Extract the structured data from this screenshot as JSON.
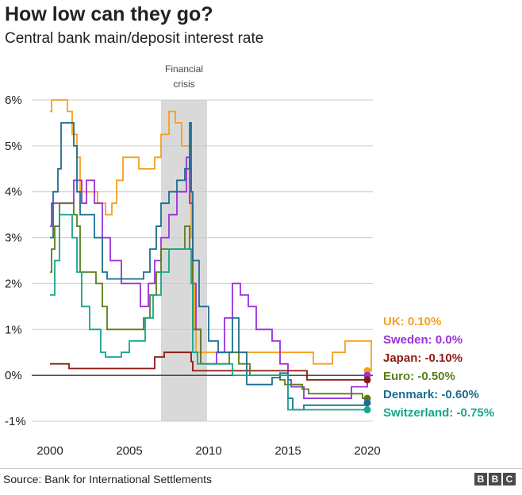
{
  "header": {
    "title": "How low can they go?",
    "subtitle": "Central bank main/deposit interest rate"
  },
  "footer": {
    "source": "Source: Bank for International Settlements",
    "logo_letters": [
      "B",
      "B",
      "C"
    ]
  },
  "annotation": {
    "line1": "Financial",
    "line2": "crisis",
    "x_start": 2007.0,
    "x_end": 2009.9
  },
  "chart_data": {
    "type": "line",
    "title": "How low can they go?",
    "subtitle": "Central bank main/deposit interest rate",
    "xlabel": "",
    "ylabel": "",
    "xlim": [
      2000,
      2020.5
    ],
    "ylim": [
      -1,
      6
    ],
    "x_ticks": [
      2000,
      2005,
      2010,
      2015,
      2020
    ],
    "x_tick_labels": [
      "2000",
      "2005",
      "2010",
      "2015",
      "2020"
    ],
    "y_ticks": [
      -1,
      0,
      1,
      2,
      3,
      4,
      5,
      6
    ],
    "y_tick_labels": [
      "-1%",
      "0%",
      "1%",
      "2%",
      "3%",
      "4%",
      "5%",
      "6%"
    ],
    "grid": true,
    "series": [
      {
        "name": "UK",
        "label": "UK: 0.10%",
        "color": "#f5a01d",
        "points": [
          [
            2000,
            5.75
          ],
          [
            2000.1,
            6.0
          ],
          [
            2001.0,
            6.0
          ],
          [
            2001.1,
            5.75
          ],
          [
            2001.4,
            5.25
          ],
          [
            2001.7,
            4.75
          ],
          [
            2001.9,
            4.0
          ],
          [
            2003.0,
            3.75
          ],
          [
            2003.5,
            3.5
          ],
          [
            2003.9,
            3.75
          ],
          [
            2004.2,
            4.25
          ],
          [
            2004.6,
            4.75
          ],
          [
            2005.6,
            4.5
          ],
          [
            2006.6,
            4.75
          ],
          [
            2007.0,
            5.25
          ],
          [
            2007.5,
            5.75
          ],
          [
            2007.9,
            5.5
          ],
          [
            2008.3,
            5.0
          ],
          [
            2008.8,
            4.5
          ],
          [
            2008.9,
            3.0
          ],
          [
            2009.0,
            2.0
          ],
          [
            2009.1,
            1.0
          ],
          [
            2009.2,
            0.5
          ],
          [
            2016.6,
            0.25
          ],
          [
            2017.8,
            0.5
          ],
          [
            2018.6,
            0.75
          ],
          [
            2020.2,
            0.75
          ],
          [
            2020.25,
            0.1
          ]
        ],
        "end_value": 0.1
      },
      {
        "name": "Sweden",
        "label": "Sweden: 0.0%",
        "color": "#9b30d9",
        "points": [
          [
            2000,
            3.25
          ],
          [
            2000.1,
            3.75
          ],
          [
            2001.5,
            4.25
          ],
          [
            2002.0,
            3.75
          ],
          [
            2002.3,
            4.25
          ],
          [
            2002.8,
            3.75
          ],
          [
            2003.3,
            3.0
          ],
          [
            2003.8,
            2.5
          ],
          [
            2004.5,
            2.0
          ],
          [
            2005.7,
            1.5
          ],
          [
            2006.2,
            2.0
          ],
          [
            2006.6,
            2.5
          ],
          [
            2007.0,
            3.0
          ],
          [
            2007.5,
            3.5
          ],
          [
            2008.0,
            4.0
          ],
          [
            2008.6,
            4.75
          ],
          [
            2008.8,
            3.75
          ],
          [
            2009.0,
            2.0
          ],
          [
            2009.2,
            1.0
          ],
          [
            2009.5,
            0.25
          ],
          [
            2010.5,
            0.5
          ],
          [
            2011.0,
            1.25
          ],
          [
            2011.5,
            2.0
          ],
          [
            2012.0,
            1.75
          ],
          [
            2012.5,
            1.5
          ],
          [
            2013.0,
            1.0
          ],
          [
            2014.0,
            0.75
          ],
          [
            2014.5,
            0.25
          ],
          [
            2015.0,
            -0.1
          ],
          [
            2015.2,
            -0.25
          ],
          [
            2016.0,
            -0.5
          ],
          [
            2019.0,
            -0.25
          ],
          [
            2020.0,
            0.0
          ]
        ],
        "end_value": 0.0
      },
      {
        "name": "Japan",
        "label": "Japan: -0.10%",
        "color": "#8b1a10",
        "points": [
          [
            2000,
            0.25
          ],
          [
            2000.6,
            0.25
          ],
          [
            2001.2,
            0.15
          ],
          [
            2006.5,
            0.15
          ],
          [
            2006.6,
            0.4
          ],
          [
            2007.2,
            0.5
          ],
          [
            2008.8,
            0.5
          ],
          [
            2008.9,
            0.3
          ],
          [
            2009.0,
            0.1
          ],
          [
            2016.1,
            0.1
          ],
          [
            2016.2,
            -0.1
          ],
          [
            2020.0,
            -0.1
          ]
        ],
        "end_value": -0.1
      },
      {
        "name": "Euro",
        "label": "Euro: -0.50%",
        "color": "#5a7e1a",
        "points": [
          [
            2000,
            2.25
          ],
          [
            2000.1,
            2.75
          ],
          [
            2000.3,
            3.25
          ],
          [
            2000.6,
            3.75
          ],
          [
            2001.5,
            3.5
          ],
          [
            2001.7,
            3.25
          ],
          [
            2001.9,
            2.25
          ],
          [
            2002.9,
            2.0
          ],
          [
            2003.3,
            1.5
          ],
          [
            2003.6,
            1.0
          ],
          [
            2005.9,
            1.25
          ],
          [
            2006.3,
            1.75
          ],
          [
            2006.7,
            2.25
          ],
          [
            2007.0,
            2.75
          ],
          [
            2008.5,
            3.25
          ],
          [
            2008.8,
            2.75
          ],
          [
            2009.0,
            1.0
          ],
          [
            2009.5,
            0.25
          ],
          [
            2011.3,
            0.5
          ],
          [
            2011.9,
            0.25
          ],
          [
            2012.6,
            0.0
          ],
          [
            2014.5,
            -0.1
          ],
          [
            2014.8,
            -0.2
          ],
          [
            2015.9,
            -0.3
          ],
          [
            2016.3,
            -0.4
          ],
          [
            2019.7,
            -0.5
          ],
          [
            2020.0,
            -0.5
          ]
        ],
        "end_value": -0.5
      },
      {
        "name": "Denmark",
        "label": "Denmark: -0.60%",
        "color": "#1b6e90",
        "points": [
          [
            2000,
            3.0
          ],
          [
            2000.2,
            4.0
          ],
          [
            2000.5,
            4.5
          ],
          [
            2000.7,
            5.5
          ],
          [
            2001.5,
            5.0
          ],
          [
            2001.7,
            4.0
          ],
          [
            2001.9,
            3.5
          ],
          [
            2002.8,
            3.0
          ],
          [
            2003.3,
            2.25
          ],
          [
            2003.6,
            2.1
          ],
          [
            2005.9,
            2.25
          ],
          [
            2006.3,
            2.75
          ],
          [
            2006.7,
            3.25
          ],
          [
            2007.0,
            3.75
          ],
          [
            2007.5,
            4.0
          ],
          [
            2008.0,
            4.25
          ],
          [
            2008.5,
            4.5
          ],
          [
            2008.8,
            5.5
          ],
          [
            2008.9,
            4.0
          ],
          [
            2009.0,
            2.5
          ],
          [
            2009.4,
            1.5
          ],
          [
            2010.0,
            0.75
          ],
          [
            2010.6,
            0.5
          ],
          [
            2011.5,
            1.25
          ],
          [
            2011.9,
            0.5
          ],
          [
            2012.4,
            -0.2
          ],
          [
            2014.0,
            -0.05
          ],
          [
            2014.5,
            0.05
          ],
          [
            2015.0,
            -0.5
          ],
          [
            2015.3,
            -0.75
          ],
          [
            2016.0,
            -0.65
          ],
          [
            2020.0,
            -0.6
          ]
        ],
        "end_value": -0.6
      },
      {
        "name": "Switzerland",
        "label": "Switzerland: -0.75%",
        "color": "#14a68a",
        "points": [
          [
            2000,
            1.75
          ],
          [
            2000.3,
            2.5
          ],
          [
            2000.6,
            3.5
          ],
          [
            2001.4,
            3.0
          ],
          [
            2001.7,
            2.25
          ],
          [
            2002.0,
            1.5
          ],
          [
            2002.5,
            1.0
          ],
          [
            2003.2,
            0.5
          ],
          [
            2003.5,
            0.4
          ],
          [
            2004.5,
            0.5
          ],
          [
            2005.0,
            0.75
          ],
          [
            2006.0,
            1.25
          ],
          [
            2006.5,
            1.75
          ],
          [
            2007.0,
            2.25
          ],
          [
            2007.5,
            2.75
          ],
          [
            2008.8,
            2.75
          ],
          [
            2008.9,
            2.0
          ],
          [
            2009.0,
            0.5
          ],
          [
            2009.3,
            0.25
          ],
          [
            2011.5,
            0.0
          ],
          [
            2014.9,
            0.0
          ],
          [
            2015.0,
            -0.75
          ],
          [
            2020.0,
            -0.75
          ]
        ],
        "end_value": -0.75
      }
    ]
  }
}
